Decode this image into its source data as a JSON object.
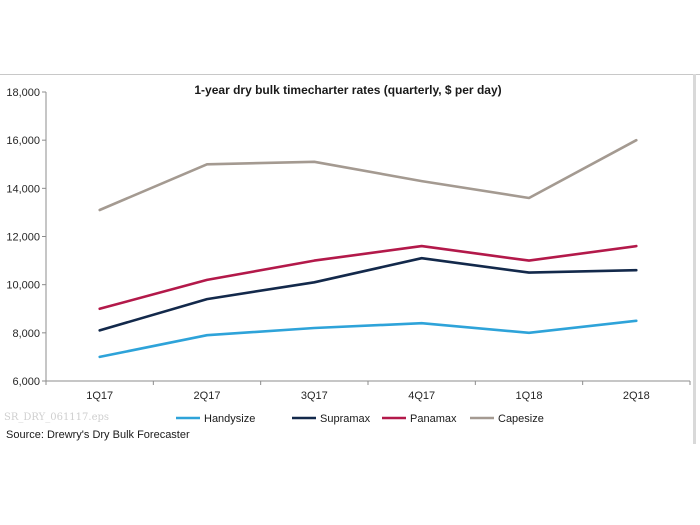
{
  "chart_data": {
    "type": "line",
    "title": "1-year dry bulk timecharter rates (quarterly, $ per day)",
    "categories": [
      "1Q17",
      "2Q17",
      "3Q17",
      "4Q17",
      "1Q18",
      "2Q18"
    ],
    "y_tick_labels": [
      "6,000",
      "8,000",
      "10,000",
      "12,000",
      "14,000",
      "16,000",
      "18,000"
    ],
    "ylim": [
      6000,
      18000
    ],
    "y_ticks": [
      6000,
      8000,
      10000,
      12000,
      14000,
      16000,
      18000
    ],
    "grid": false,
    "legend_position": "bottom",
    "series": [
      {
        "name": "Handysize",
        "color": "#2ea3d9",
        "values": [
          7000,
          7900,
          8200,
          8400,
          8000,
          8500
        ]
      },
      {
        "name": "Supramax",
        "color": "#13294b",
        "values": [
          8100,
          9400,
          10100,
          11100,
          10500,
          10600
        ]
      },
      {
        "name": "Panamax",
        "color": "#b3194a",
        "values": [
          9000,
          10200,
          11000,
          11600,
          11000,
          11600
        ]
      },
      {
        "name": "Capesize",
        "color": "#a49a91",
        "values": [
          13100,
          15000,
          15100,
          14300,
          13600,
          16000
        ]
      }
    ]
  },
  "source": "Source: Drewry's Dry Bulk Forecaster",
  "watermark": "SR_DRY_061117.eps"
}
